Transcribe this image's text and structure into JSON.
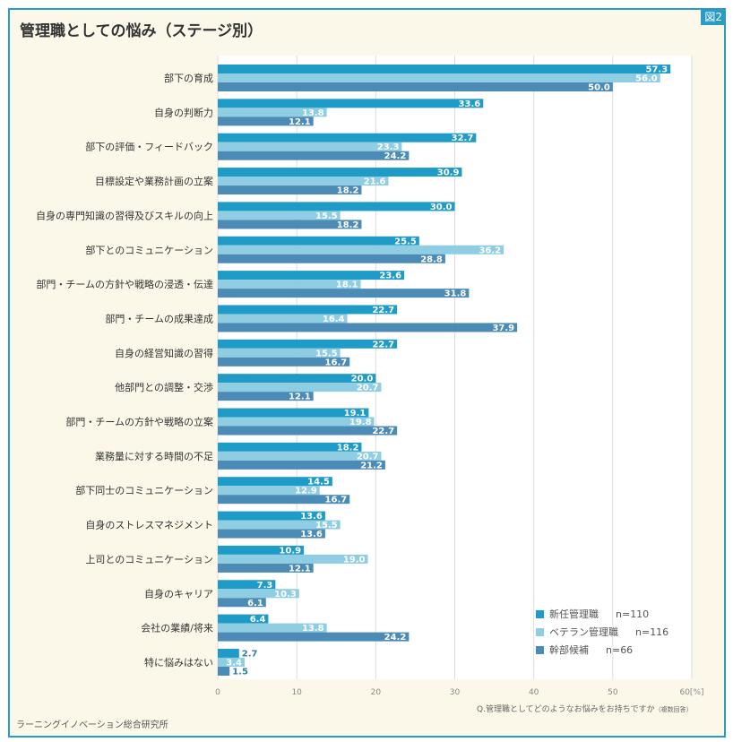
{
  "figure_label": "図2",
  "source": "ラーニングイノベーション総合研究所",
  "chart_data": {
    "type": "bar",
    "orientation": "horizontal",
    "title": "管理職としての悩み（ステージ別）",
    "xlabel": "Q.管理職としてどのようなお悩みをお持ちですか",
    "xlabel_note": "（複数回答）",
    "xunit": "[%]",
    "xlim": [
      0,
      60
    ],
    "xticks": [
      0,
      10,
      20,
      30,
      40,
      50,
      60
    ],
    "grid": true,
    "legend_position": "bottom-right",
    "categories": [
      "部下の育成",
      "自身の判断力",
      "部下の評価・フィードバック",
      "目標設定や業務計画の立案",
      "自身の専門知識の習得及びスキルの向上",
      "部下とのコミュニケーション",
      "部門・チームの方針や戦略の浸透・伝達",
      "部門・チームの成果達成",
      "自身の経営知識の習得",
      "他部門との調整・交渉",
      "部門・チームの方針や戦略の立案",
      "業務量に対する時間の不足",
      "部下同士のコミュニケーション",
      "自身のストレスマネジメント",
      "上司とのコミュニケーション",
      "自身のキャリア",
      "会社の業績/将来",
      "特に悩みはない"
    ],
    "series": [
      {
        "name": "新任管理職",
        "n": "n=110",
        "color": "#1f9bc7",
        "values": [
          57.3,
          33.6,
          32.7,
          30.9,
          30.0,
          25.5,
          23.6,
          22.7,
          22.7,
          20.0,
          19.1,
          18.2,
          14.5,
          13.6,
          10.9,
          7.3,
          6.4,
          2.7
        ]
      },
      {
        "name": "ベテラン管理職",
        "n": "n=116",
        "color": "#8fcde3",
        "values": [
          56.0,
          13.8,
          23.3,
          21.6,
          15.5,
          36.2,
          18.1,
          16.4,
          15.5,
          20.7,
          19.8,
          20.7,
          12.9,
          15.5,
          19.0,
          10.3,
          13.8,
          3.4
        ]
      },
      {
        "name": "幹部候補",
        "n": "n=66",
        "color": "#4b8bb6",
        "values": [
          50.0,
          12.1,
          24.2,
          18.2,
          18.2,
          28.8,
          31.8,
          37.9,
          16.7,
          12.1,
          22.7,
          21.2,
          16.7,
          13.6,
          12.1,
          6.1,
          24.2,
          1.5
        ]
      }
    ]
  }
}
